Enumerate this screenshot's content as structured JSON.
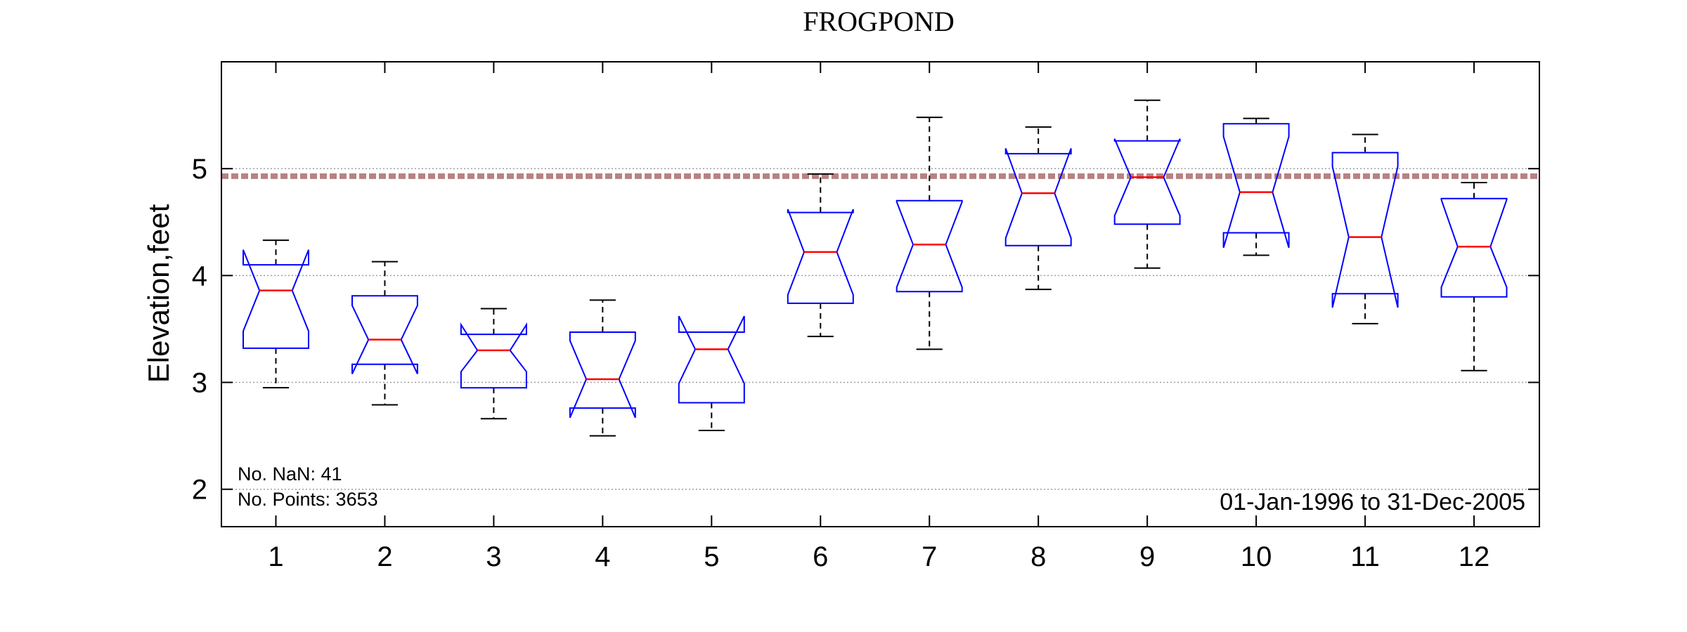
{
  "chart_data": {
    "type": "boxplot",
    "title": "FROGPOND",
    "xlabel": "",
    "ylabel": "Elevation,feet",
    "ylim": [
      1.65,
      6.0
    ],
    "yticks": [
      2,
      3,
      4,
      5
    ],
    "ytick_labels": [
      "2",
      "3",
      "4",
      "5"
    ],
    "grid": "horizontal-dotted",
    "categories": [
      "1",
      "2",
      "3",
      "4",
      "5",
      "6",
      "7",
      "8",
      "9",
      "10",
      "11",
      "12"
    ],
    "boxes": [
      {
        "month": "1",
        "whisker_low": 2.95,
        "q1": 3.32,
        "median": 3.86,
        "q3": 4.1,
        "whisker_high": 4.33,
        "notch_low": 3.48,
        "notch_high": 4.24
      },
      {
        "month": "2",
        "whisker_low": 2.79,
        "q1": 3.17,
        "median": 3.4,
        "q3": 3.81,
        "whisker_high": 4.13,
        "notch_low": 3.08,
        "notch_high": 3.72
      },
      {
        "month": "3",
        "whisker_low": 2.66,
        "q1": 2.95,
        "median": 3.3,
        "q3": 3.45,
        "whisker_high": 3.69,
        "notch_low": 3.1,
        "notch_high": 3.54
      },
      {
        "month": "4",
        "whisker_low": 2.5,
        "q1": 2.76,
        "median": 3.03,
        "q3": 3.47,
        "whisker_high": 3.77,
        "notch_low": 2.67,
        "notch_high": 3.39
      },
      {
        "month": "5",
        "whisker_low": 2.55,
        "q1": 2.81,
        "median": 3.31,
        "q3": 3.47,
        "whisker_high": 3.47,
        "notch_low": 2.99,
        "notch_high": 3.62
      },
      {
        "month": "6",
        "whisker_low": 3.43,
        "q1": 3.74,
        "median": 4.22,
        "q3": 4.59,
        "whisker_high": 4.95,
        "notch_low": 3.82,
        "notch_high": 4.62
      },
      {
        "month": "7",
        "whisker_low": 3.31,
        "q1": 3.85,
        "median": 4.29,
        "q3": 4.7,
        "whisker_high": 5.48,
        "notch_low": 3.89,
        "notch_high": 4.69
      },
      {
        "month": "8",
        "whisker_low": 3.87,
        "q1": 4.28,
        "median": 4.77,
        "q3": 5.14,
        "whisker_high": 5.39,
        "notch_low": 4.35,
        "notch_high": 5.19
      },
      {
        "month": "9",
        "whisker_low": 4.07,
        "q1": 4.48,
        "median": 4.92,
        "q3": 5.26,
        "whisker_high": 5.64,
        "notch_low": 4.56,
        "notch_high": 5.28
      },
      {
        "month": "10",
        "whisker_low": 4.19,
        "q1": 4.4,
        "median": 4.78,
        "q3": 5.42,
        "whisker_high": 5.47,
        "notch_low": 4.26,
        "notch_high": 5.3
      },
      {
        "month": "11",
        "whisker_low": 3.55,
        "q1": 3.83,
        "median": 4.36,
        "q3": 5.15,
        "whisker_high": 5.32,
        "notch_low": 3.7,
        "notch_high": 5.02
      },
      {
        "month": "12",
        "whisker_low": 3.11,
        "q1": 3.8,
        "median": 4.27,
        "q3": 4.72,
        "whisker_high": 4.87,
        "notch_low": 3.89,
        "notch_high": 4.71
      }
    ],
    "reference_line": {
      "y": 4.93
    },
    "annotations": {
      "no_nan": "No. NaN: 41",
      "no_points": "No. Points: 3653",
      "date_range": "01-Jan-1996 to 31-Dec-2005"
    },
    "colors": {
      "box": "#0000ff",
      "median": "#ff0000",
      "whisker": "#000000",
      "reference_line": "#b88282",
      "grid": "#9e9e9e"
    }
  }
}
